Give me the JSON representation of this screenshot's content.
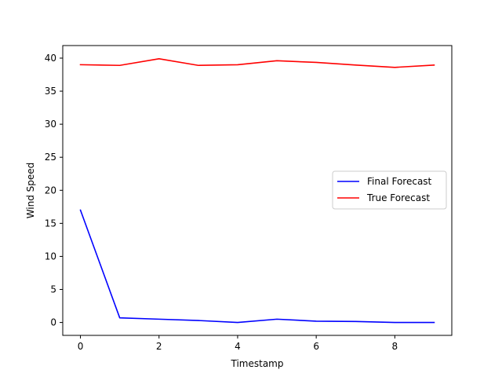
{
  "chart_data": {
    "type": "line",
    "title": "",
    "xlabel": "Timestamp",
    "ylabel": "Wind Speed",
    "xlim": [
      -0.45,
      9.45
    ],
    "ylim": [
      -1.95,
      41.9
    ],
    "x_ticks": [
      0,
      2,
      4,
      6,
      8
    ],
    "x_tick_labels": [
      "0",
      "2",
      "4",
      "6",
      "8"
    ],
    "y_ticks": [
      0,
      5,
      10,
      15,
      20,
      25,
      30,
      35,
      40
    ],
    "y_tick_labels": [
      "0",
      "5",
      "10",
      "15",
      "20",
      "25",
      "30",
      "35",
      "40"
    ],
    "grid": false,
    "legend_position": "center-right",
    "x": [
      0,
      1,
      2,
      3,
      4,
      5,
      6,
      7,
      8,
      9
    ],
    "series": [
      {
        "name": "Final Forecast",
        "color": "#0000ff",
        "values": [
          17.0,
          0.7,
          0.5,
          0.3,
          0.0,
          0.5,
          0.2,
          0.15,
          0.0,
          0.0
        ]
      },
      {
        "name": "True Forecast",
        "color": "#ff0000",
        "values": [
          39.0,
          38.9,
          39.9,
          38.9,
          39.0,
          39.6,
          39.35,
          38.95,
          38.6,
          38.95
        ]
      }
    ]
  }
}
